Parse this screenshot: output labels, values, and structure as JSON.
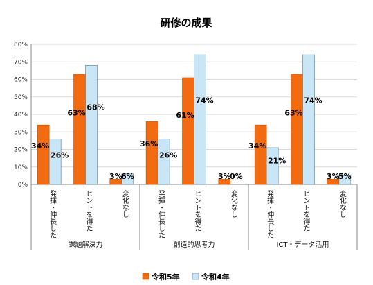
{
  "chart_data": {
    "type": "bar",
    "title": "研修の成果",
    "ylim": [
      0,
      80
    ],
    "yticks": [
      "0%",
      "10%",
      "20%",
      "30%",
      "40%",
      "50%",
      "60%",
      "70%",
      "80%"
    ],
    "grid": true,
    "legend_position": "bottom",
    "groups": [
      {
        "label": "課題解決力",
        "categories": [
          "発揮・伸長した",
          "ヒントを得た",
          "変化なし"
        ]
      },
      {
        "label": "創造的思考力",
        "categories": [
          "発揮・伸長した",
          "ヒントを得た",
          "変化なし"
        ]
      },
      {
        "label": "ICT・データ活用",
        "categories": [
          "発揮・伸長した",
          "ヒントを得た",
          "変化なし"
        ]
      }
    ],
    "series": [
      {
        "name": "令和5年",
        "color": "#f26b10",
        "values": [
          34,
          63,
          3,
          36,
          61,
          3,
          34,
          63,
          3
        ],
        "labels": [
          "34%",
          "63%",
          "3%",
          "36%",
          "61%",
          "3%",
          "34%",
          "63%",
          "3%"
        ]
      },
      {
        "name": "令和4年",
        "color": "#c9e6f7",
        "values": [
          26,
          68,
          6,
          26,
          74,
          0,
          21,
          74,
          5
        ],
        "labels": [
          "26%",
          "68%",
          "6%",
          "26%",
          "74%",
          "0%",
          "21%",
          "74%",
          "5%"
        ]
      }
    ]
  }
}
